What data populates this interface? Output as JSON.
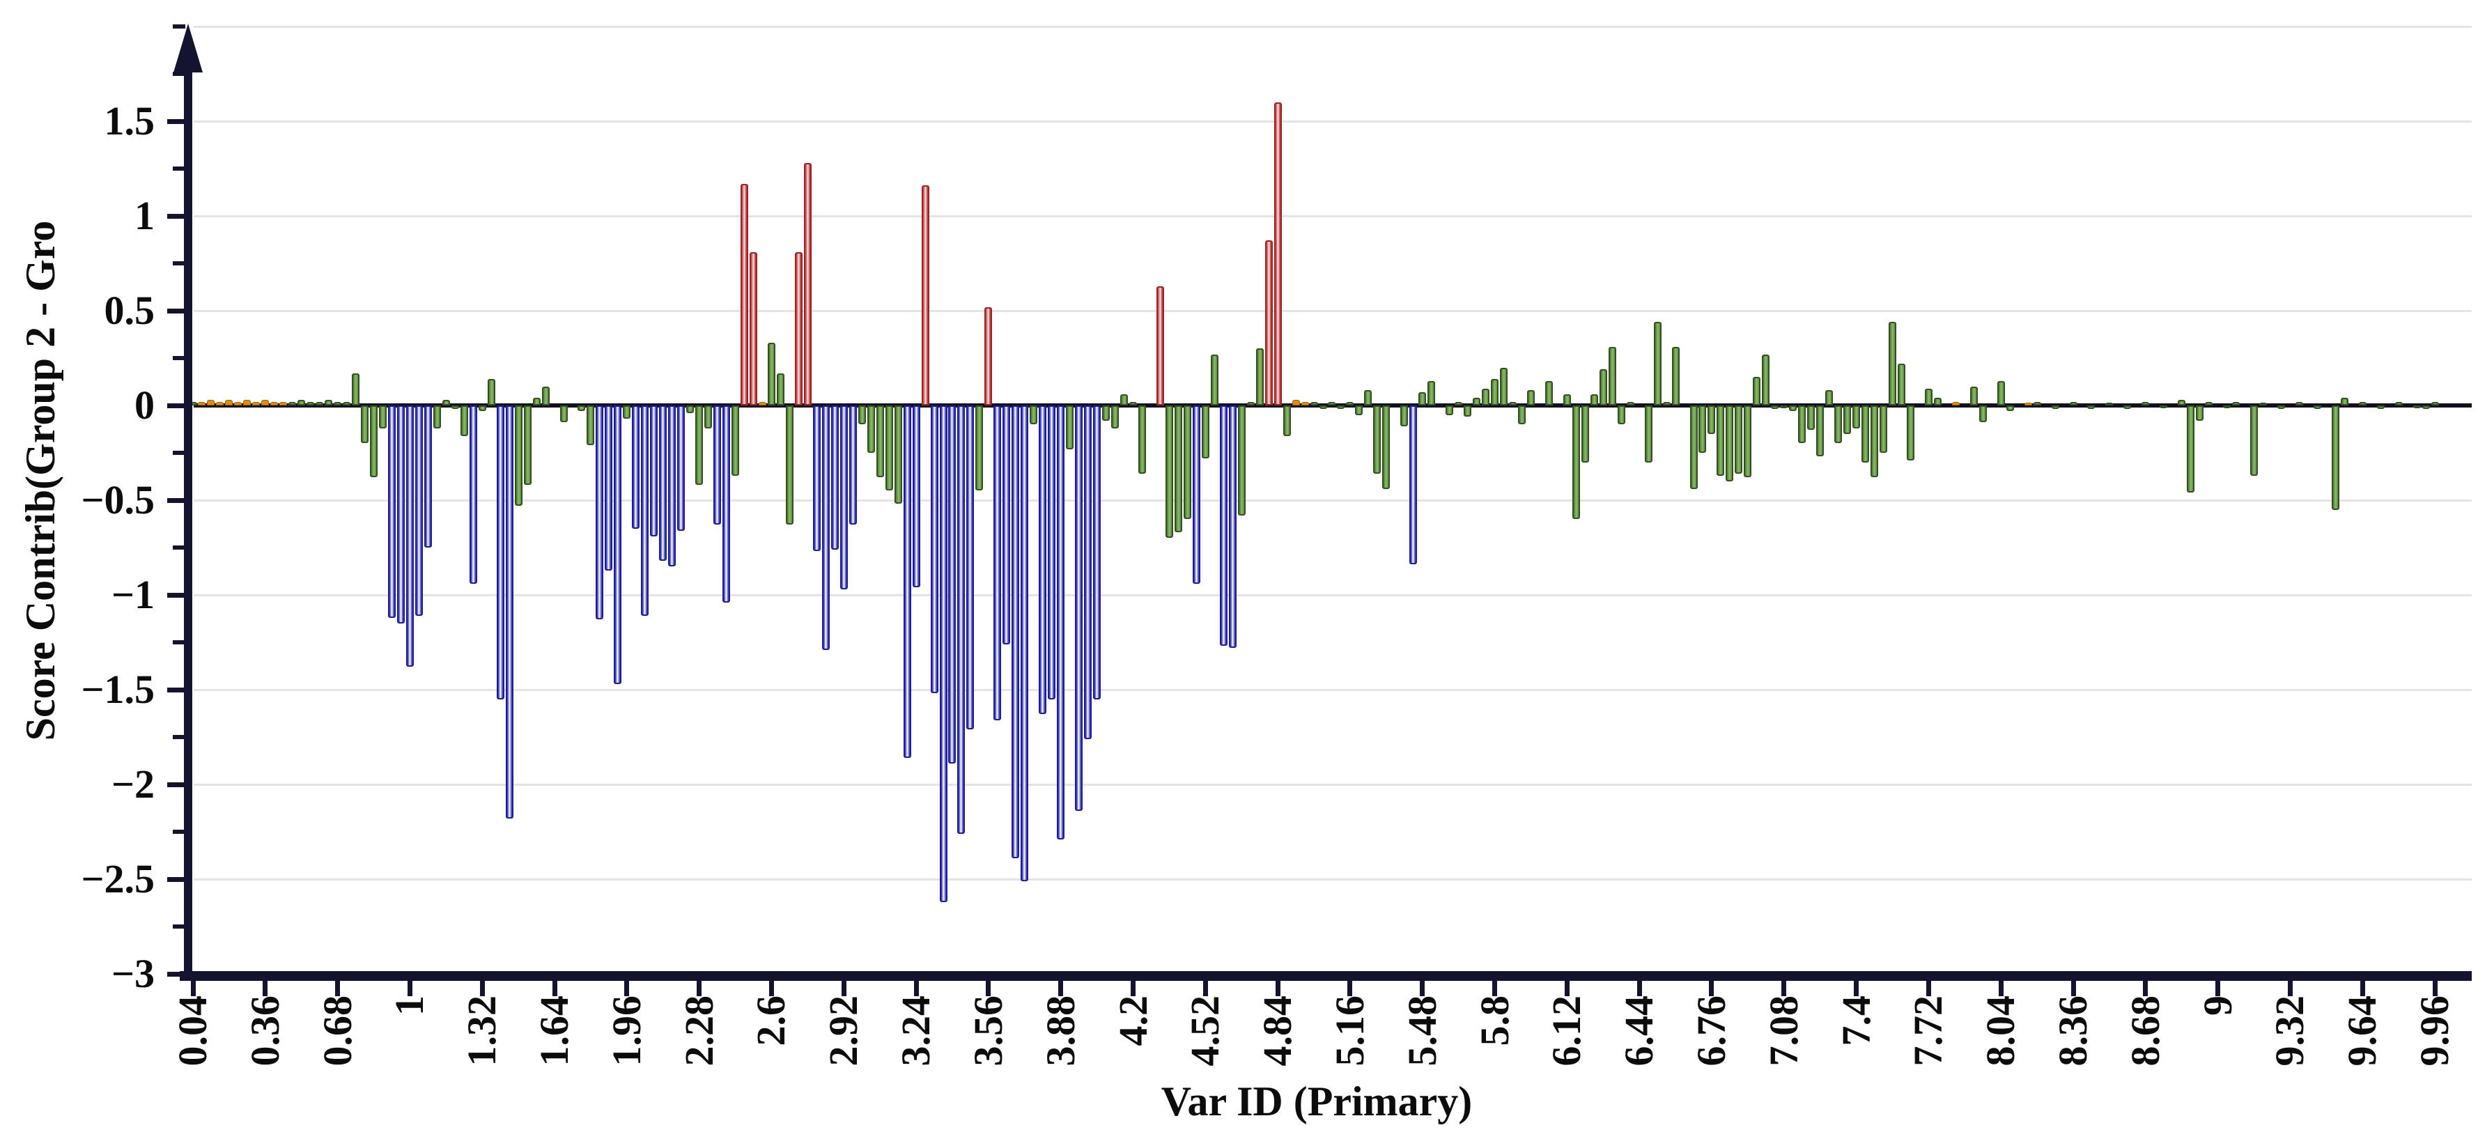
{
  "chart_data": {
    "type": "bar",
    "title": "",
    "xlabel": "Var ID (Primary)",
    "ylabel": "Score Contrib(Group 2 - Gro",
    "xlim": [
      0.04,
      9.96
    ],
    "ylim": [
      -3,
      2.0
    ],
    "grid": true,
    "legend": "none",
    "x_tick_labels": [
      "0.04",
      "0.36",
      "0.68",
      "1",
      "1.32",
      "1.64",
      "1.96",
      "2.28",
      "2.6",
      "2.92",
      "3.24",
      "3.56",
      "3.88",
      "4.2",
      "4.52",
      "4.84",
      "5.16",
      "5.48",
      "5.8",
      "6.12",
      "6.44",
      "6.76",
      "7.08",
      "7.4",
      "7.72",
      "8.04",
      "8.36",
      "8.68",
      "9",
      "9.32",
      "9.64",
      "9.96"
    ],
    "y_ticks": [
      {
        "v": 1.5,
        "label": "1.5"
      },
      {
        "v": 1.0,
        "label": "1"
      },
      {
        "v": 0.5,
        "label": "0.5"
      },
      {
        "v": 0.0,
        "label": "0"
      },
      {
        "v": -0.5,
        "label": "−0.5"
      },
      {
        "v": -1.0,
        "label": "−1"
      },
      {
        "v": -1.5,
        "label": "−1.5"
      },
      {
        "v": -2.0,
        "label": "−2"
      },
      {
        "v": -2.5,
        "label": "−2.5"
      },
      {
        "v": -3.0,
        "label": "−3"
      }
    ],
    "y_gridline_values": [
      2.0,
      1.5,
      1.0,
      0.5,
      -0.5,
      -1.0,
      -1.5,
      -2.0,
      -2.5
    ],
    "colors": {
      "b": "#3a3ac8",
      "r": "#c84848",
      "g": "#6a9a4e",
      "o": "#e08c10"
    },
    "color_meaning": {
      "b": "blue-group-bar",
      "r": "red-group-bar",
      "g": "green-group-bar",
      "o": "orange-group-bar"
    },
    "bars": [
      [
        0.04,
        0.02,
        "g"
      ],
      [
        0.08,
        0.02,
        "o"
      ],
      [
        0.12,
        0.03,
        "o"
      ],
      [
        0.16,
        0.02,
        "o"
      ],
      [
        0.2,
        0.03,
        "o"
      ],
      [
        0.24,
        0.02,
        "o"
      ],
      [
        0.28,
        0.03,
        "o"
      ],
      [
        0.32,
        0.02,
        "o"
      ],
      [
        0.36,
        0.03,
        "o"
      ],
      [
        0.4,
        0.02,
        "o"
      ],
      [
        0.44,
        0.02,
        "o"
      ],
      [
        0.48,
        0.02,
        "g"
      ],
      [
        0.52,
        0.03,
        "g"
      ],
      [
        0.56,
        0.02,
        "g"
      ],
      [
        0.6,
        0.02,
        "g"
      ],
      [
        0.64,
        0.03,
        "g"
      ],
      [
        0.68,
        0.02,
        "g"
      ],
      [
        0.72,
        0.02,
        "g"
      ],
      [
        0.76,
        0.17,
        "g"
      ],
      [
        0.8,
        -0.2,
        "g"
      ],
      [
        0.84,
        -0.38,
        "g"
      ],
      [
        0.88,
        -0.12,
        "g"
      ],
      [
        0.92,
        -1.12,
        "b"
      ],
      [
        0.96,
        -1.15,
        "b"
      ],
      [
        1.0,
        -1.38,
        "b"
      ],
      [
        1.04,
        -1.11,
        "b"
      ],
      [
        1.08,
        -0.75,
        "b"
      ],
      [
        1.12,
        -0.12,
        "g"
      ],
      [
        1.16,
        0.03,
        "g"
      ],
      [
        1.2,
        -0.02,
        "g"
      ],
      [
        1.24,
        -0.16,
        "g"
      ],
      [
        1.28,
        -0.94,
        "b"
      ],
      [
        1.32,
        -0.03,
        "g"
      ],
      [
        1.36,
        0.14,
        "g"
      ],
      [
        1.4,
        -1.55,
        "b"
      ],
      [
        1.44,
        -2.18,
        "b"
      ],
      [
        1.48,
        -0.53,
        "g"
      ],
      [
        1.52,
        -0.42,
        "g"
      ],
      [
        1.56,
        0.04,
        "g"
      ],
      [
        1.6,
        0.1,
        "g"
      ],
      [
        1.68,
        -0.09,
        "g"
      ],
      [
        1.76,
        -0.03,
        "g"
      ],
      [
        1.8,
        -0.21,
        "g"
      ],
      [
        1.84,
        -1.13,
        "b"
      ],
      [
        1.88,
        -0.87,
        "b"
      ],
      [
        1.92,
        -1.47,
        "b"
      ],
      [
        1.96,
        -0.07,
        "g"
      ],
      [
        2.0,
        -0.65,
        "b"
      ],
      [
        2.04,
        -1.11,
        "b"
      ],
      [
        2.08,
        -0.69,
        "b"
      ],
      [
        2.12,
        -0.82,
        "b"
      ],
      [
        2.16,
        -0.85,
        "b"
      ],
      [
        2.2,
        -0.66,
        "b"
      ],
      [
        2.24,
        -0.04,
        "g"
      ],
      [
        2.28,
        -0.42,
        "g"
      ],
      [
        2.32,
        -0.12,
        "g"
      ],
      [
        2.36,
        -0.63,
        "b"
      ],
      [
        2.4,
        -1.04,
        "b"
      ],
      [
        2.44,
        -0.37,
        "g"
      ],
      [
        2.48,
        1.17,
        "r"
      ],
      [
        2.52,
        0.81,
        "r"
      ],
      [
        2.56,
        0.02,
        "o"
      ],
      [
        2.6,
        0.33,
        "g"
      ],
      [
        2.64,
        0.17,
        "g"
      ],
      [
        2.68,
        -0.63,
        "g"
      ],
      [
        2.72,
        0.81,
        "r"
      ],
      [
        2.76,
        1.28,
        "r"
      ],
      [
        2.8,
        -0.77,
        "b"
      ],
      [
        2.84,
        -1.29,
        "b"
      ],
      [
        2.88,
        -0.76,
        "b"
      ],
      [
        2.92,
        -0.97,
        "b"
      ],
      [
        2.96,
        -0.63,
        "b"
      ],
      [
        3.0,
        -0.1,
        "g"
      ],
      [
        3.04,
        -0.25,
        "g"
      ],
      [
        3.08,
        -0.38,
        "g"
      ],
      [
        3.12,
        -0.45,
        "g"
      ],
      [
        3.16,
        -0.52,
        "g"
      ],
      [
        3.2,
        -1.86,
        "b"
      ],
      [
        3.24,
        -0.96,
        "b"
      ],
      [
        3.28,
        1.16,
        "r"
      ],
      [
        3.32,
        -1.52,
        "b"
      ],
      [
        3.36,
        -2.62,
        "b"
      ],
      [
        3.4,
        -1.89,
        "b"
      ],
      [
        3.44,
        -2.26,
        "b"
      ],
      [
        3.48,
        -1.71,
        "b"
      ],
      [
        3.52,
        -0.45,
        "g"
      ],
      [
        3.56,
        0.52,
        "r"
      ],
      [
        3.6,
        -1.66,
        "b"
      ],
      [
        3.64,
        -1.26,
        "b"
      ],
      [
        3.68,
        -2.39,
        "b"
      ],
      [
        3.72,
        -2.51,
        "b"
      ],
      [
        3.76,
        -0.1,
        "g"
      ],
      [
        3.8,
        -1.63,
        "b"
      ],
      [
        3.84,
        -1.55,
        "b"
      ],
      [
        3.88,
        -2.29,
        "b"
      ],
      [
        3.92,
        -0.23,
        "g"
      ],
      [
        3.96,
        -2.14,
        "b"
      ],
      [
        4.0,
        -1.76,
        "b"
      ],
      [
        4.04,
        -1.55,
        "b"
      ],
      [
        4.08,
        -0.08,
        "g"
      ],
      [
        4.12,
        -0.12,
        "g"
      ],
      [
        4.16,
        0.06,
        "g"
      ],
      [
        4.2,
        0.02,
        "g"
      ],
      [
        4.24,
        -0.36,
        "g"
      ],
      [
        4.32,
        0.63,
        "r"
      ],
      [
        4.36,
        -0.7,
        "g"
      ],
      [
        4.4,
        -0.67,
        "g"
      ],
      [
        4.44,
        -0.6,
        "g"
      ],
      [
        4.48,
        -0.94,
        "b"
      ],
      [
        4.52,
        -0.28,
        "g"
      ],
      [
        4.56,
        0.27,
        "g"
      ],
      [
        4.6,
        -1.27,
        "b"
      ],
      [
        4.64,
        -1.28,
        "b"
      ],
      [
        4.68,
        -0.58,
        "g"
      ],
      [
        4.72,
        0.02,
        "g"
      ],
      [
        4.76,
        0.3,
        "g"
      ],
      [
        4.8,
        0.87,
        "r"
      ],
      [
        4.84,
        1.6,
        "r"
      ],
      [
        4.88,
        -0.16,
        "g"
      ],
      [
        4.92,
        0.03,
        "o"
      ],
      [
        4.96,
        0.02,
        "o"
      ],
      [
        5.0,
        0.02,
        "g"
      ],
      [
        5.04,
        -0.02,
        "g"
      ],
      [
        5.08,
        0.02,
        "g"
      ],
      [
        5.12,
        -0.02,
        "g"
      ],
      [
        5.16,
        0.02,
        "g"
      ],
      [
        5.2,
        -0.05,
        "g"
      ],
      [
        5.24,
        0.08,
        "g"
      ],
      [
        5.28,
        -0.36,
        "g"
      ],
      [
        5.32,
        -0.44,
        "g"
      ],
      [
        5.4,
        -0.11,
        "g"
      ],
      [
        5.44,
        -0.84,
        "b"
      ],
      [
        5.48,
        0.07,
        "g"
      ],
      [
        5.52,
        0.13,
        "g"
      ],
      [
        5.6,
        -0.05,
        "g"
      ],
      [
        5.64,
        0.02,
        "g"
      ],
      [
        5.68,
        -0.06,
        "g"
      ],
      [
        5.72,
        0.04,
        "g"
      ],
      [
        5.76,
        0.09,
        "g"
      ],
      [
        5.8,
        0.14,
        "g"
      ],
      [
        5.84,
        0.2,
        "g"
      ],
      [
        5.88,
        0.02,
        "g"
      ],
      [
        5.92,
        -0.1,
        "g"
      ],
      [
        5.96,
        0.08,
        "g"
      ],
      [
        6.04,
        0.13,
        "g"
      ],
      [
        6.12,
        0.06,
        "g"
      ],
      [
        6.16,
        -0.6,
        "g"
      ],
      [
        6.2,
        -0.3,
        "g"
      ],
      [
        6.24,
        0.06,
        "g"
      ],
      [
        6.28,
        0.19,
        "g"
      ],
      [
        6.32,
        0.31,
        "g"
      ],
      [
        6.36,
        -0.1,
        "g"
      ],
      [
        6.4,
        0.02,
        "g"
      ],
      [
        6.48,
        -0.3,
        "g"
      ],
      [
        6.52,
        0.44,
        "g"
      ],
      [
        6.56,
        0.02,
        "g"
      ],
      [
        6.6,
        0.31,
        "g"
      ],
      [
        6.68,
        -0.44,
        "g"
      ],
      [
        6.72,
        -0.25,
        "g"
      ],
      [
        6.76,
        -0.15,
        "g"
      ],
      [
        6.8,
        -0.37,
        "g"
      ],
      [
        6.84,
        -0.4,
        "g"
      ],
      [
        6.88,
        -0.36,
        "g"
      ],
      [
        6.92,
        -0.38,
        "g"
      ],
      [
        6.96,
        0.15,
        "g"
      ],
      [
        7.0,
        0.27,
        "g"
      ],
      [
        7.04,
        -0.02,
        "g"
      ],
      [
        7.08,
        -0.01,
        "g"
      ],
      [
        7.12,
        -0.03,
        "g"
      ],
      [
        7.16,
        -0.2,
        "g"
      ],
      [
        7.2,
        -0.13,
        "g"
      ],
      [
        7.24,
        -0.27,
        "g"
      ],
      [
        7.28,
        0.08,
        "g"
      ],
      [
        7.32,
        -0.2,
        "g"
      ],
      [
        7.36,
        -0.15,
        "g"
      ],
      [
        7.4,
        -0.12,
        "g"
      ],
      [
        7.44,
        -0.3,
        "g"
      ],
      [
        7.48,
        -0.38,
        "g"
      ],
      [
        7.52,
        -0.25,
        "g"
      ],
      [
        7.56,
        0.44,
        "g"
      ],
      [
        7.6,
        0.22,
        "g"
      ],
      [
        7.64,
        -0.29,
        "g"
      ],
      [
        7.72,
        0.09,
        "g"
      ],
      [
        7.76,
        0.04,
        "g"
      ],
      [
        7.84,
        0.02,
        "o"
      ],
      [
        7.92,
        0.1,
        "g"
      ],
      [
        7.96,
        -0.09,
        "g"
      ],
      [
        8.04,
        0.13,
        "g"
      ],
      [
        8.08,
        -0.03,
        "g"
      ],
      [
        8.16,
        0.01,
        "o"
      ],
      [
        8.2,
        0.02,
        "g"
      ],
      [
        8.28,
        -0.02,
        "g"
      ],
      [
        8.36,
        0.02,
        "g"
      ],
      [
        8.44,
        -0.02,
        "g"
      ],
      [
        8.52,
        0.01,
        "g"
      ],
      [
        8.6,
        -0.02,
        "g"
      ],
      [
        8.68,
        0.02,
        "g"
      ],
      [
        8.76,
        -0.01,
        "g"
      ],
      [
        8.84,
        0.03,
        "g"
      ],
      [
        8.88,
        -0.46,
        "g"
      ],
      [
        8.92,
        -0.08,
        "g"
      ],
      [
        8.96,
        0.02,
        "g"
      ],
      [
        9.04,
        -0.01,
        "g"
      ],
      [
        9.08,
        0.02,
        "g"
      ],
      [
        9.16,
        -0.37,
        "g"
      ],
      [
        9.2,
        0.01,
        "g"
      ],
      [
        9.28,
        -0.02,
        "g"
      ],
      [
        9.36,
        0.02,
        "g"
      ],
      [
        9.44,
        -0.02,
        "g"
      ],
      [
        9.52,
        -0.55,
        "g"
      ],
      [
        9.56,
        0.04,
        "g"
      ],
      [
        9.64,
        0.02,
        "g"
      ],
      [
        9.72,
        -0.02,
        "g"
      ],
      [
        9.8,
        0.02,
        "g"
      ],
      [
        9.88,
        -0.01,
        "g"
      ],
      [
        9.92,
        -0.02,
        "g"
      ],
      [
        9.96,
        0.02,
        "g"
      ]
    ]
  }
}
